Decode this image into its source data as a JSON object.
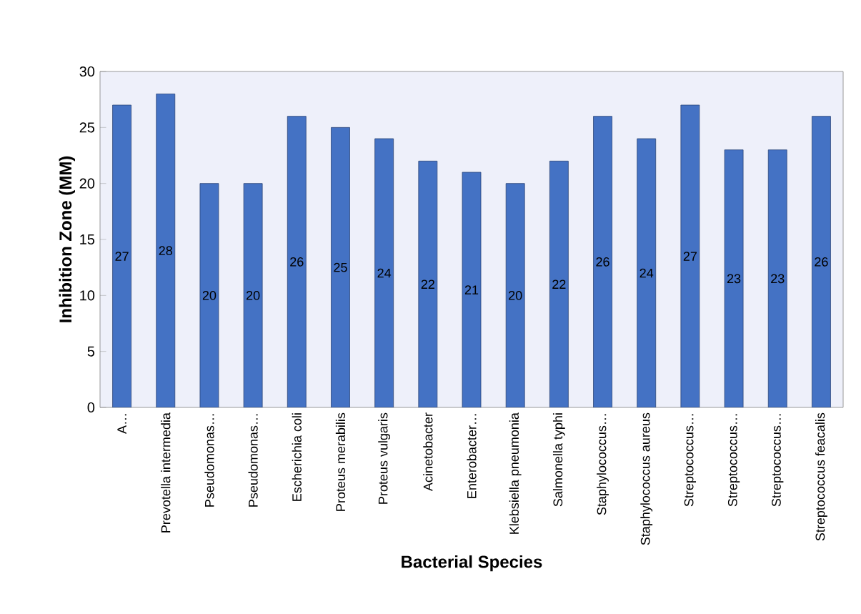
{
  "chart_data": {
    "type": "bar",
    "xlabel": "Bacterial Species",
    "ylabel": "Inhibition Zone (MM)",
    "categories": [
      "A…",
      "Prevotella intermedia",
      "Pseudomonas…",
      "Pseudomonas…",
      "Escherichia coli",
      "Proteus merabilis",
      "Proteus  vulgaris",
      "Acinetobacter",
      "Enterobacter…",
      "Klebsiella pneumonia",
      "Salmonella typhi",
      "Staphylococcus…",
      "Staphylococcus aureus",
      "Streptococcus…",
      "Streptococcus…",
      "Streptococcus…",
      "Streptococcus feacalis"
    ],
    "values": [
      27,
      28,
      20,
      20,
      26,
      25,
      24,
      22,
      21,
      20,
      22,
      26,
      24,
      27,
      23,
      23,
      26
    ],
    "color": "#4472c4",
    "ylim": [
      0,
      30
    ],
    "yticks": [
      0,
      5,
      10,
      15,
      20,
      25,
      30
    ],
    "grid": false,
    "data_labels": true
  }
}
